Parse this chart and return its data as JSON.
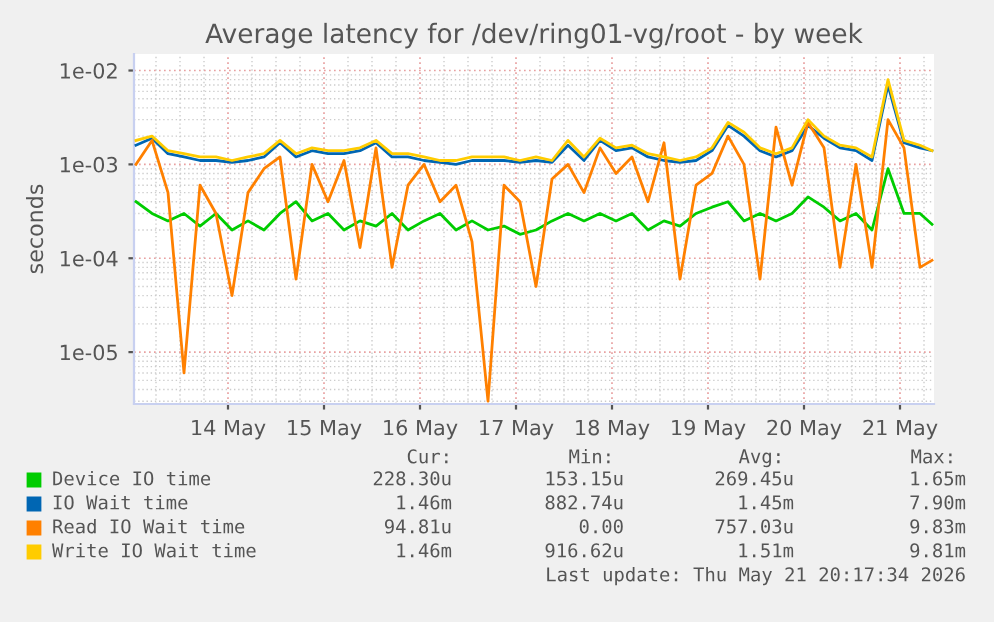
{
  "chart_data": {
    "type": "line",
    "title": "Average latency for /dev/ring01-vg/root - by week",
    "ylabel": "seconds",
    "x": [
      "2026-05-13T13:00",
      "2026-05-13T17:00",
      "2026-05-13T21:00",
      "2026-05-14T01:00",
      "2026-05-14T05:00",
      "2026-05-14T09:00",
      "2026-05-14T13:00",
      "2026-05-14T17:00",
      "2026-05-14T21:00",
      "2026-05-15T01:00",
      "2026-05-15T05:00",
      "2026-05-15T09:00",
      "2026-05-15T13:00",
      "2026-05-15T17:00",
      "2026-05-15T21:00",
      "2026-05-16T01:00",
      "2026-05-16T05:00",
      "2026-05-16T09:00",
      "2026-05-16T13:00",
      "2026-05-16T17:00",
      "2026-05-16T21:00",
      "2026-05-17T01:00",
      "2026-05-17T05:00",
      "2026-05-17T09:00",
      "2026-05-17T13:00",
      "2026-05-17T17:00",
      "2026-05-17T21:00",
      "2026-05-18T01:00",
      "2026-05-18T05:00",
      "2026-05-18T09:00",
      "2026-05-18T13:00",
      "2026-05-18T17:00",
      "2026-05-18T21:00",
      "2026-05-19T01:00",
      "2026-05-19T05:00",
      "2026-05-19T09:00",
      "2026-05-19T13:00",
      "2026-05-19T17:00",
      "2026-05-19T21:00",
      "2026-05-20T01:00",
      "2026-05-20T05:00",
      "2026-05-20T09:00",
      "2026-05-20T13:00",
      "2026-05-20T17:00",
      "2026-05-20T21:00",
      "2026-05-21T01:00",
      "2026-05-21T05:00",
      "2026-05-21T09:00",
      "2026-05-21T13:00",
      "2026-05-21T17:00",
      "2026-05-21T20:00"
    ],
    "series": [
      {
        "name": "Device IO time",
        "color": "#00cc00",
        "values": [
          0.0004,
          0.0003,
          0.00025,
          0.0003,
          0.00022,
          0.0003,
          0.0002,
          0.00025,
          0.0002,
          0.0003,
          0.0004,
          0.00025,
          0.0003,
          0.0002,
          0.00025,
          0.00022,
          0.0003,
          0.0002,
          0.00025,
          0.0003,
          0.0002,
          0.00025,
          0.0002,
          0.00022,
          0.00018,
          0.0002,
          0.00025,
          0.0003,
          0.00025,
          0.0003,
          0.00025,
          0.0003,
          0.0002,
          0.00025,
          0.00022,
          0.0003,
          0.00035,
          0.0004,
          0.00025,
          0.0003,
          0.00025,
          0.0003,
          0.00045,
          0.00035,
          0.00025,
          0.0003,
          0.0002,
          0.0009,
          0.0003,
          0.0003,
          0.00023
        ]
      },
      {
        "name": "IO Wait time",
        "color": "#0066b3",
        "values": [
          0.0016,
          0.0019,
          0.0013,
          0.0012,
          0.0011,
          0.0011,
          0.00105,
          0.0011,
          0.0012,
          0.0017,
          0.0012,
          0.0014,
          0.0013,
          0.0013,
          0.0014,
          0.0017,
          0.0012,
          0.0012,
          0.0011,
          0.00105,
          0.001,
          0.0011,
          0.0011,
          0.0011,
          0.00105,
          0.0011,
          0.00105,
          0.0016,
          0.0011,
          0.0018,
          0.0014,
          0.0015,
          0.0012,
          0.0011,
          0.00105,
          0.0011,
          0.0014,
          0.0026,
          0.002,
          0.0014,
          0.0012,
          0.0014,
          0.0026,
          0.0019,
          0.0015,
          0.0014,
          0.0011,
          0.007,
          0.0017,
          0.0015,
          0.0014
        ]
      },
      {
        "name": "Read IO Wait time",
        "color": "#ff8000",
        "values": [
          0.001,
          0.0018,
          0.0005,
          6e-06,
          0.0006,
          0.0003,
          4e-05,
          0.0005,
          0.0009,
          0.0012,
          6e-05,
          0.001,
          0.0004,
          0.0011,
          0.00013,
          0.0015,
          8e-05,
          0.0006,
          0.001,
          0.0004,
          0.0006,
          0.00015,
          3e-06,
          0.0006,
          0.0004,
          5e-05,
          0.0007,
          0.001,
          0.0005,
          0.0015,
          0.0008,
          0.0012,
          0.0004,
          0.0017,
          6e-05,
          0.0006,
          0.0008,
          0.002,
          0.001,
          6e-05,
          0.0025,
          0.0006,
          0.0028,
          0.0015,
          8e-05,
          0.001,
          8e-05,
          0.003,
          0.0015,
          8e-05,
          9.5e-05
        ]
      },
      {
        "name": "Write IO Wait time",
        "color": "#ffcc00",
        "values": [
          0.0018,
          0.002,
          0.0014,
          0.0013,
          0.0012,
          0.0012,
          0.0011,
          0.0012,
          0.0013,
          0.0018,
          0.0013,
          0.0015,
          0.0014,
          0.0014,
          0.0015,
          0.0018,
          0.0013,
          0.0013,
          0.0012,
          0.0011,
          0.0011,
          0.0012,
          0.0012,
          0.0012,
          0.0011,
          0.0012,
          0.0011,
          0.0018,
          0.0012,
          0.0019,
          0.0015,
          0.0016,
          0.0013,
          0.0012,
          0.0011,
          0.0012,
          0.0015,
          0.0028,
          0.0022,
          0.0015,
          0.0013,
          0.0015,
          0.003,
          0.002,
          0.0016,
          0.0015,
          0.0012,
          0.008,
          0.0018,
          0.0016,
          0.0014
        ]
      }
    ],
    "log": "y",
    "ylim": [
      2.8e-06,
      0.015
    ],
    "yticks": [
      {
        "value": 1e-05,
        "label": "1e-05"
      },
      {
        "value": 0.0001,
        "label": "1e-04"
      },
      {
        "value": 0.001,
        "label": "1e-03"
      },
      {
        "value": 0.01,
        "label": "1e-02"
      }
    ],
    "xlim": [
      "2026-05-13T12:30",
      "2026-05-21T20:30"
    ],
    "xticks": [
      {
        "value": "2026-05-14T12:00",
        "label": "14 May"
      },
      {
        "value": "2026-05-15T12:00",
        "label": "15 May"
      },
      {
        "value": "2026-05-16T12:00",
        "label": "16 May"
      },
      {
        "value": "2026-05-17T12:00",
        "label": "17 May"
      },
      {
        "value": "2026-05-18T12:00",
        "label": "18 May"
      },
      {
        "value": "2026-05-19T12:00",
        "label": "19 May"
      },
      {
        "value": "2026-05-20T12:00",
        "label": "20 May"
      },
      {
        "value": "2026-05-21T12:00",
        "label": "21 May"
      }
    ],
    "grid": true,
    "legend": "bottom",
    "marker": "none",
    "line_style": "solid",
    "annotations": [
      "Cur:",
      "Min:",
      "Avg:",
      "Max:",
      "228.30u",
      "153.15u",
      "269.45u",
      "1.65m",
      "1.46m",
      "882.74u",
      "1.45m",
      "7.90m",
      "94.81u",
      "0.00",
      "757.03u",
      "9.83m",
      "1.46m",
      "916.62u",
      "1.51m",
      "9.81m",
      "Last update: Thu May 21 20:17:34 2026"
    ]
  }
}
